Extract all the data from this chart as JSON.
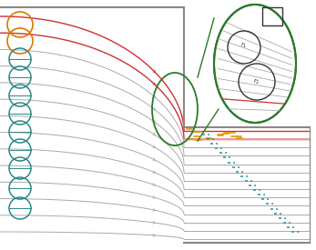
{
  "wall_color": "#888888",
  "streamline_color": "#aaaaaa",
  "red_line_color": "#cc3333",
  "orange_circle_color": "#dd7700",
  "teal_circle_color": "#2a8888",
  "green_color": "#2a7a2a",
  "pink_line_color": "#ee8888",
  "orange_dash_color": "#dd9900",
  "teal_dash_color": "#2a9090",
  "dark_color": "#333333",
  "n_streamlines": 14,
  "figsize": [
    3.47,
    2.75
  ],
  "dpi": 100
}
